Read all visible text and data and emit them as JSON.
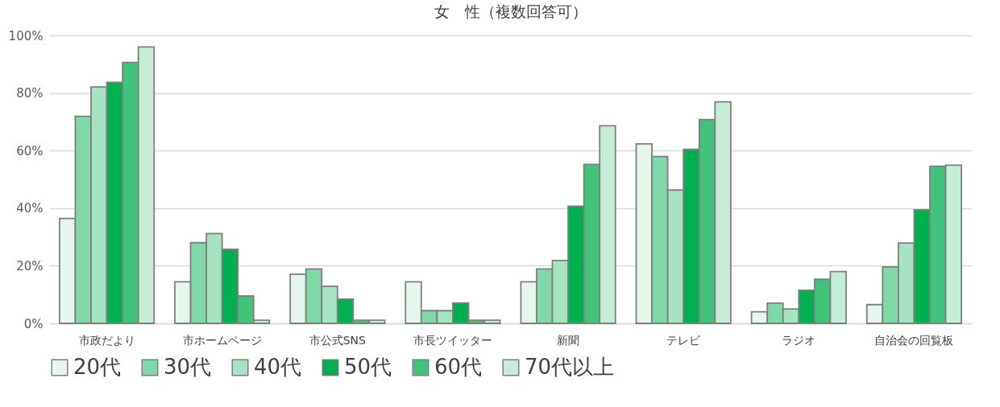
{
  "chart_data": {
    "type": "bar",
    "title": "女　性（複数回答可）",
    "categories": [
      "市政だより",
      "市ホームページ",
      "市公式SNS",
      "市長ツイッター",
      "新聞",
      "テレビ",
      "ラジオ",
      "自治会の回覧板"
    ],
    "series": [
      {
        "name": "20代",
        "color": "#e6f6ec",
        "values": [
          36.4,
          14.4,
          17.1,
          14.4,
          14.4,
          62.3,
          4.0,
          6.5
        ]
      },
      {
        "name": "30代",
        "color": "#80d8a8",
        "values": [
          71.9,
          28.0,
          18.9,
          4.4,
          18.9,
          57.9,
          7.0,
          19.6
        ]
      },
      {
        "name": "40代",
        "color": "#a6e3c0",
        "values": [
          82.1,
          31.2,
          12.9,
          4.4,
          21.8,
          46.3,
          5.0,
          27.9
        ]
      },
      {
        "name": "50代",
        "color": "#00b050",
        "values": [
          83.7,
          25.7,
          8.4,
          7.1,
          40.7,
          60.4,
          11.5,
          39.4
        ]
      },
      {
        "name": "60代",
        "color": "#40c47c",
        "values": [
          90.6,
          9.5,
          1.1,
          1.1,
          55.2,
          70.8,
          15.3,
          54.6
        ]
      },
      {
        "name": "70代以上",
        "color": "#c6eed6",
        "values": [
          96.0,
          1.1,
          1.1,
          1.1,
          68.6,
          76.9,
          18.0,
          54.9
        ]
      }
    ],
    "ylim": [
      0,
      100
    ],
    "yticks": [
      {
        "value": 0,
        "label": "0%"
      },
      {
        "value": 20,
        "label": "20%"
      },
      {
        "value": 40,
        "label": "40%"
      },
      {
        "value": 60,
        "label": "60%"
      },
      {
        "value": 80,
        "label": "80%"
      },
      {
        "value": 100,
        "label": "100%"
      }
    ],
    "grid": "y",
    "legend": "bottom"
  }
}
